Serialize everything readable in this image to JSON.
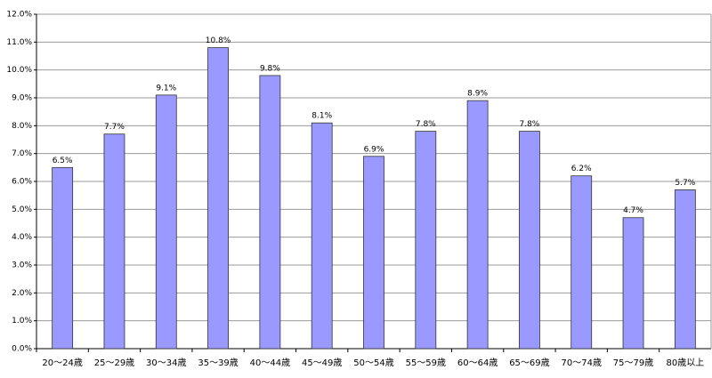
{
  "chart_data": {
    "type": "bar",
    "categories": [
      "20～24歳",
      "25～29歳",
      "30～34歳",
      "35～39歳",
      "40～44歳",
      "45～49歳",
      "50～54歳",
      "55～59歳",
      "60～64歳",
      "65～69歳",
      "70～74歳",
      "75～79歳",
      "80歳以上"
    ],
    "values": [
      6.5,
      7.7,
      9.1,
      10.8,
      9.8,
      8.1,
      6.9,
      7.8,
      8.9,
      7.8,
      6.2,
      4.7,
      5.7
    ],
    "value_labels": [
      "6.5%",
      "7.7%",
      "9.1%",
      "10.8%",
      "9.8%",
      "8.1%",
      "6.9%",
      "7.8%",
      "8.9%",
      "7.8%",
      "6.2%",
      "4.7%",
      "5.7%"
    ],
    "color": "#9999ff",
    "ylim": [
      0,
      12
    ],
    "yticks": [
      {
        "value": 0,
        "label": "0.0%"
      },
      {
        "value": 1,
        "label": "1.0%"
      },
      {
        "value": 2,
        "label": "2.0%"
      },
      {
        "value": 3,
        "label": "3.0%"
      },
      {
        "value": 4,
        "label": "4.0%"
      },
      {
        "value": 5,
        "label": "5.0%"
      },
      {
        "value": 6,
        "label": "6.0%"
      },
      {
        "value": 7,
        "label": "7.0%"
      },
      {
        "value": 8,
        "label": "8.0%"
      },
      {
        "value": 9,
        "label": "9.0%"
      },
      {
        "value": 10,
        "label": "10.0%"
      },
      {
        "value": 11,
        "label": "11.0%"
      },
      {
        "value": 12,
        "label": "12.0%"
      }
    ],
    "grid": true
  }
}
